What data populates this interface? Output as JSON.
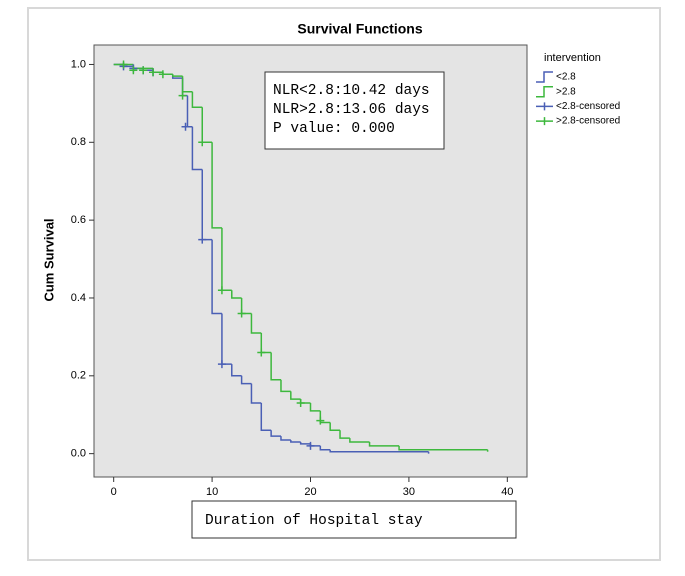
{
  "chart_data": {
    "type": "step",
    "title": "Survival Functions",
    "x_label": "Duration of Hospital stay",
    "y_label": "Cum Survival",
    "legend_title": "intervention",
    "annotations": [
      "NLR<2.8:10.42 days",
      "NLR>2.8:13.06 days",
      "P value: 0.000"
    ],
    "xlim": [
      -2,
      42
    ],
    "ylim": [
      -0.06,
      1.05
    ],
    "xticks": [
      0,
      10,
      20,
      30,
      40
    ],
    "yticks": [
      {
        "value": 0,
        "label": "0.0"
      },
      0.2,
      0.4,
      0.6,
      0.8,
      {
        "value": 1,
        "label": "1.0"
      }
    ],
    "series": [
      {
        "name": "<2.8",
        "color": "#4a5fb5",
        "censored": false,
        "x": [
          0,
          1,
          2,
          3,
          4,
          5,
          6,
          7,
          7.5,
          8,
          9,
          10,
          11,
          12,
          13,
          14,
          15,
          16,
          17,
          18,
          19,
          20,
          21,
          22,
          32
        ],
        "values": [
          1.0,
          0.995,
          0.99,
          0.985,
          0.98,
          0.975,
          0.965,
          0.92,
          0.84,
          0.73,
          0.55,
          0.36,
          0.23,
          0.2,
          0.18,
          0.13,
          0.06,
          0.045,
          0.035,
          0.03,
          0.025,
          0.02,
          0.01,
          0.005,
          0.0
        ]
      },
      {
        "name": ">2.8",
        "color": "#3db83d",
        "censored": false,
        "x": [
          0,
          2,
          4,
          5,
          6,
          7,
          8,
          9,
          10,
          11,
          12,
          13,
          14,
          15,
          16,
          17,
          18,
          19,
          20,
          21,
          22,
          23,
          24,
          26,
          29,
          38
        ],
        "values": [
          1.0,
          0.99,
          0.98,
          0.975,
          0.97,
          0.93,
          0.89,
          0.8,
          0.58,
          0.42,
          0.4,
          0.36,
          0.31,
          0.26,
          0.19,
          0.16,
          0.14,
          0.13,
          0.11,
          0.08,
          0.06,
          0.04,
          0.03,
          0.02,
          0.01,
          0.005
        ]
      },
      {
        "name": "<2.8-censored",
        "color": "#4a5fb5",
        "censored": true,
        "x": [
          1,
          2,
          3,
          4,
          7.3,
          9,
          11,
          20
        ],
        "values": [
          0.995,
          0.99,
          0.985,
          0.98,
          0.84,
          0.55,
          0.23,
          0.02
        ]
      },
      {
        "name": ">2.8-censored",
        "color": "#3db83d",
        "censored": true,
        "x": [
          1,
          2,
          3,
          4,
          5,
          7,
          9,
          11,
          13,
          15,
          19,
          21
        ],
        "values": [
          1.0,
          0.985,
          0.985,
          0.98,
          0.975,
          0.92,
          0.8,
          0.42,
          0.36,
          0.26,
          0.13,
          0.085
        ]
      }
    ]
  }
}
